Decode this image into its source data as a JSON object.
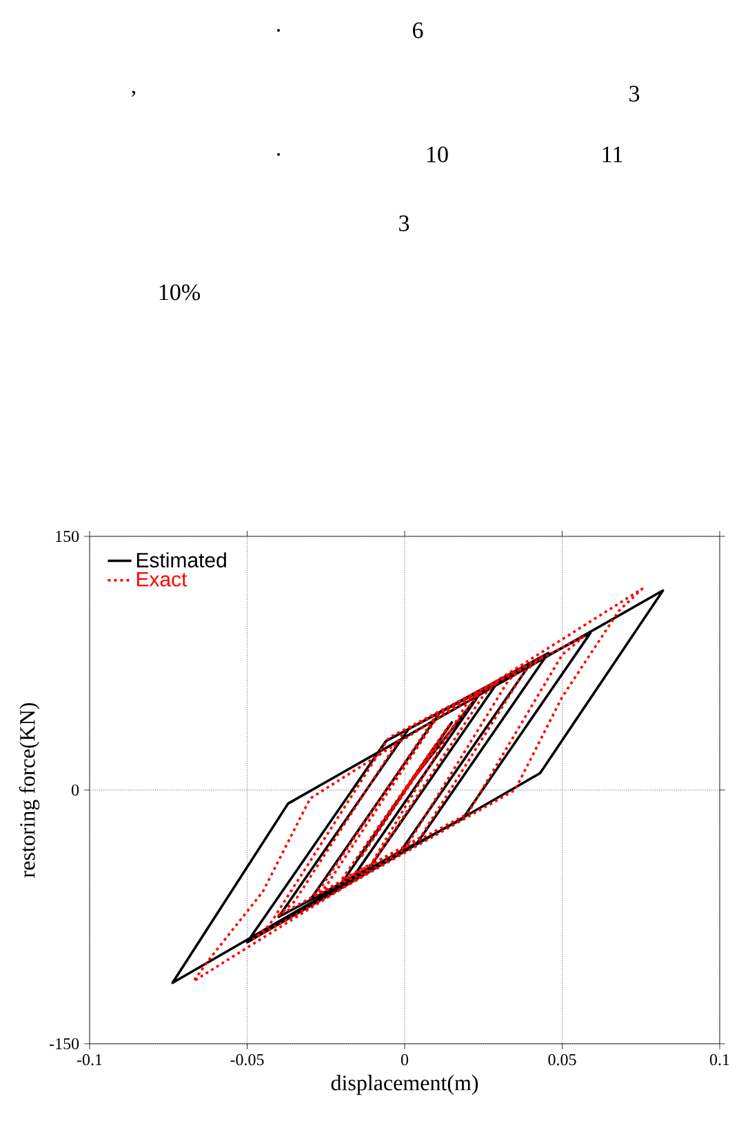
{
  "chart_data": {
    "type": "line",
    "xlabel": "displacement(m)",
    "ylabel": "restoring force(KN)",
    "annotations": [
      ".",
      "6",
      ",",
      "3",
      ".",
      "10",
      "11",
      "3",
      "10%"
    ],
    "xlim": [
      -0.1,
      0.1
    ],
    "xticks": [
      -0.1,
      -0.05,
      0,
      0.05,
      0.1
    ],
    "ylim": [
      -150,
      150
    ],
    "yticks": [
      -150,
      0,
      150
    ],
    "grid": true,
    "legend": "top left",
    "marker": "none",
    "series": [
      {
        "name": "Estimated",
        "color": "#000000",
        "line_style": "solid",
        "x": [
          0,
          0.025,
          -0.0162,
          -0.03,
          0.0112,
          0.04,
          -0.0012,
          -0.0737,
          -0.037,
          0.082,
          0.043,
          -0.05,
          -0.0059,
          0.059,
          0.0184,
          -0.04,
          0.0012,
          0.0456,
          0.0041,
          -0.03,
          0.0112,
          0.03,
          -0.0112,
          -0.02,
          0.015,
          -0.015,
          0.01,
          -0.01,
          0.005
        ],
        "values": [
          0,
          60,
          -51,
          -65,
          46,
          75,
          -36,
          -114,
          -8,
          118,
          10,
          -90,
          29,
          93,
          -17,
          -75,
          36,
          81,
          -31,
          -65,
          46,
          65,
          -46,
          -55,
          40,
          -41,
          27,
          -28,
          13
        ]
      },
      {
        "name": "Exact",
        "color": "#ff0000",
        "line_style": "dotted",
        "x": [
          0,
          0.024,
          0.02,
          -0.012,
          -0.029,
          -0.025,
          0.01,
          0.038,
          0.033,
          0.0,
          -0.067,
          -0.062,
          -0.045,
          -0.03,
          0.0754,
          0.068,
          0.05,
          0.035,
          -0.048,
          -0.043,
          -0.005,
          0.057,
          0.05,
          0.02,
          -0.04,
          -0.035,
          0.0,
          0.044,
          0.038,
          0.005,
          -0.03,
          -0.026,
          0.01,
          0.029,
          0.025,
          -0.01,
          -0.02,
          0.014,
          -0.014,
          0.01,
          -0.01
        ],
        "values": [
          0,
          58,
          52,
          -48,
          -63,
          -57,
          42,
          73,
          65,
          -35,
          -113,
          -100,
          -60,
          -5,
          119,
          106,
          55,
          0,
          -88,
          -80,
          31,
          91,
          80,
          -14,
          -74,
          -66,
          35,
          79,
          70,
          -28,
          -64,
          -56,
          44,
          63,
          56,
          -43,
          -53,
          38,
          -40,
          26,
          -27
        ]
      }
    ]
  }
}
